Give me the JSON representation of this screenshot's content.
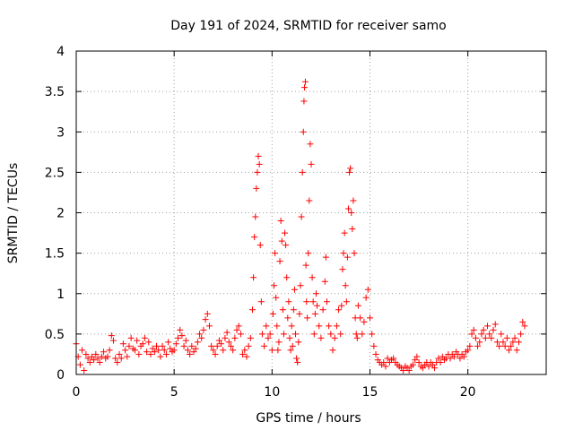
{
  "chart_data": {
    "type": "scatter",
    "title": "Day 191 of 2024, SRMTID for receiver samo",
    "xlabel": "GPS time / hours",
    "ylabel": "SRMTID / TECUs",
    "xlim": [
      0,
      24
    ],
    "ylim": [
      0,
      4
    ],
    "xticks": [
      0,
      5,
      10,
      15,
      20
    ],
    "yticks": [
      0,
      0.5,
      1,
      1.5,
      2,
      2.5,
      3,
      3.5,
      4
    ],
    "xtick_labels": [
      "0",
      "5",
      "10",
      "15",
      "20"
    ],
    "ytick_labels": [
      "0",
      "0.5",
      "1",
      "1.5",
      "2",
      "2.5",
      "3",
      "3.5",
      "4"
    ],
    "grid": true,
    "marker": "+",
    "marker_color": "#ff0000",
    "series": [
      {
        "name": "SRMTID",
        "points": [
          [
            0.0,
            0.38
          ],
          [
            0.1,
            0.22
          ],
          [
            0.2,
            0.12
          ],
          [
            0.3,
            0.3
          ],
          [
            0.4,
            0.05
          ],
          [
            0.5,
            0.25
          ],
          [
            0.6,
            0.2
          ],
          [
            0.7,
            0.15
          ],
          [
            0.8,
            0.22
          ],
          [
            0.9,
            0.18
          ],
          [
            1.0,
            0.25
          ],
          [
            1.1,
            0.2
          ],
          [
            1.2,
            0.15
          ],
          [
            1.3,
            0.22
          ],
          [
            1.4,
            0.28
          ],
          [
            1.5,
            0.2
          ],
          [
            1.6,
            0.22
          ],
          [
            1.7,
            0.3
          ],
          [
            1.8,
            0.48
          ],
          [
            1.9,
            0.42
          ],
          [
            2.0,
            0.2
          ],
          [
            2.1,
            0.15
          ],
          [
            2.2,
            0.25
          ],
          [
            2.3,
            0.2
          ],
          [
            2.4,
            0.38
          ],
          [
            2.5,
            0.3
          ],
          [
            2.6,
            0.22
          ],
          [
            2.7,
            0.35
          ],
          [
            2.8,
            0.45
          ],
          [
            2.9,
            0.32
          ],
          [
            3.0,
            0.3
          ],
          [
            3.1,
            0.42
          ],
          [
            3.2,
            0.25
          ],
          [
            3.3,
            0.35
          ],
          [
            3.4,
            0.38
          ],
          [
            3.5,
            0.45
          ],
          [
            3.6,
            0.28
          ],
          [
            3.7,
            0.4
          ],
          [
            3.8,
            0.25
          ],
          [
            3.9,
            0.32
          ],
          [
            4.0,
            0.28
          ],
          [
            4.1,
            0.35
          ],
          [
            4.2,
            0.3
          ],
          [
            4.3,
            0.22
          ],
          [
            4.4,
            0.35
          ],
          [
            4.5,
            0.3
          ],
          [
            4.6,
            0.25
          ],
          [
            4.7,
            0.4
          ],
          [
            4.8,
            0.32
          ],
          [
            4.9,
            0.28
          ],
          [
            5.0,
            0.3
          ],
          [
            5.1,
            0.38
          ],
          [
            5.2,
            0.45
          ],
          [
            5.3,
            0.55
          ],
          [
            5.4,
            0.48
          ],
          [
            5.5,
            0.35
          ],
          [
            5.6,
            0.42
          ],
          [
            5.7,
            0.3
          ],
          [
            5.8,
            0.25
          ],
          [
            5.9,
            0.35
          ],
          [
            6.0,
            0.28
          ],
          [
            6.1,
            0.32
          ],
          [
            6.2,
            0.4
          ],
          [
            6.3,
            0.5
          ],
          [
            6.4,
            0.45
          ],
          [
            6.5,
            0.55
          ],
          [
            6.6,
            0.68
          ],
          [
            6.7,
            0.75
          ],
          [
            6.8,
            0.6
          ],
          [
            6.9,
            0.35
          ],
          [
            7.0,
            0.3
          ],
          [
            7.1,
            0.25
          ],
          [
            7.2,
            0.35
          ],
          [
            7.3,
            0.42
          ],
          [
            7.4,
            0.38
          ],
          [
            7.5,
            0.3
          ],
          [
            7.6,
            0.45
          ],
          [
            7.7,
            0.52
          ],
          [
            7.8,
            0.4
          ],
          [
            7.9,
            0.35
          ],
          [
            8.0,
            0.3
          ],
          [
            8.1,
            0.45
          ],
          [
            8.2,
            0.55
          ],
          [
            8.3,
            0.6
          ],
          [
            8.4,
            0.5
          ],
          [
            8.5,
            0.25
          ],
          [
            8.6,
            0.3
          ],
          [
            8.7,
            0.22
          ],
          [
            8.8,
            0.35
          ],
          [
            8.9,
            0.45
          ],
          [
            9.0,
            0.8
          ],
          [
            9.05,
            1.2
          ],
          [
            9.1,
            1.7
          ],
          [
            9.15,
            1.95
          ],
          [
            9.2,
            2.3
          ],
          [
            9.25,
            2.5
          ],
          [
            9.3,
            2.7
          ],
          [
            9.35,
            2.6
          ],
          [
            9.4,
            1.6
          ],
          [
            9.45,
            0.9
          ],
          [
            9.5,
            0.5
          ],
          [
            9.6,
            0.35
          ],
          [
            9.7,
            0.6
          ],
          [
            9.8,
            0.45
          ],
          [
            9.9,
            0.5
          ],
          [
            10.0,
            0.3
          ],
          [
            10.05,
            0.75
          ],
          [
            10.1,
            1.1
          ],
          [
            10.15,
            1.5
          ],
          [
            10.2,
            0.95
          ],
          [
            10.25,
            0.6
          ],
          [
            10.3,
            0.3
          ],
          [
            10.35,
            0.4
          ],
          [
            10.4,
            1.4
          ],
          [
            10.45,
            1.9
          ],
          [
            10.5,
            1.65
          ],
          [
            10.55,
            0.8
          ],
          [
            10.6,
            0.5
          ],
          [
            10.65,
            1.75
          ],
          [
            10.7,
            1.6
          ],
          [
            10.75,
            1.2
          ],
          [
            10.8,
            0.7
          ],
          [
            10.85,
            0.9
          ],
          [
            10.9,
            0.45
          ],
          [
            10.95,
            0.3
          ],
          [
            11.0,
            0.6
          ],
          [
            11.05,
            0.35
          ],
          [
            11.1,
            0.8
          ],
          [
            11.15,
            1.05
          ],
          [
            11.2,
            0.5
          ],
          [
            11.25,
            0.2
          ],
          [
            11.3,
            0.15
          ],
          [
            11.35,
            0.4
          ],
          [
            11.4,
            0.75
          ],
          [
            11.45,
            1.1
          ],
          [
            11.5,
            1.95
          ],
          [
            11.55,
            2.5
          ],
          [
            11.6,
            3.0
          ],
          [
            11.63,
            3.38
          ],
          [
            11.66,
            3.55
          ],
          [
            11.7,
            3.62
          ],
          [
            11.73,
            1.35
          ],
          [
            11.76,
            0.9
          ],
          [
            11.8,
            0.7
          ],
          [
            11.85,
            1.5
          ],
          [
            11.9,
            2.15
          ],
          [
            11.95,
            2.85
          ],
          [
            12.0,
            2.6
          ],
          [
            12.05,
            1.2
          ],
          [
            12.1,
            0.9
          ],
          [
            12.15,
            0.5
          ],
          [
            12.2,
            0.75
          ],
          [
            12.25,
            1.0
          ],
          [
            12.3,
            0.85
          ],
          [
            12.4,
            0.6
          ],
          [
            12.5,
            0.45
          ],
          [
            12.6,
            0.8
          ],
          [
            12.7,
            1.15
          ],
          [
            12.75,
            1.45
          ],
          [
            12.8,
            0.9
          ],
          [
            12.9,
            0.6
          ],
          [
            13.0,
            0.5
          ],
          [
            13.1,
            0.3
          ],
          [
            13.2,
            0.45
          ],
          [
            13.3,
            0.6
          ],
          [
            13.4,
            0.8
          ],
          [
            13.5,
            0.5
          ],
          [
            13.55,
            0.85
          ],
          [
            13.6,
            1.3
          ],
          [
            13.65,
            1.5
          ],
          [
            13.7,
            1.75
          ],
          [
            13.75,
            1.1
          ],
          [
            13.8,
            0.9
          ],
          [
            13.85,
            1.45
          ],
          [
            13.9,
            2.05
          ],
          [
            13.95,
            2.5
          ],
          [
            14.0,
            2.55
          ],
          [
            14.05,
            2.0
          ],
          [
            14.1,
            1.8
          ],
          [
            14.15,
            2.15
          ],
          [
            14.2,
            1.5
          ],
          [
            14.25,
            0.7
          ],
          [
            14.3,
            0.5
          ],
          [
            14.35,
            0.45
          ],
          [
            14.4,
            0.85
          ],
          [
            14.5,
            0.7
          ],
          [
            14.6,
            0.5
          ],
          [
            14.7,
            0.65
          ],
          [
            14.8,
            0.95
          ],
          [
            14.9,
            1.05
          ],
          [
            15.0,
            0.7
          ],
          [
            15.1,
            0.5
          ],
          [
            15.2,
            0.35
          ],
          [
            15.3,
            0.25
          ],
          [
            15.4,
            0.18
          ],
          [
            15.5,
            0.15
          ],
          [
            15.6,
            0.12
          ],
          [
            15.7,
            0.15
          ],
          [
            15.8,
            0.1
          ],
          [
            15.9,
            0.2
          ],
          [
            16.0,
            0.15
          ],
          [
            16.1,
            0.18
          ],
          [
            16.2,
            0.2
          ],
          [
            16.3,
            0.15
          ],
          [
            16.4,
            0.12
          ],
          [
            16.5,
            0.1
          ],
          [
            16.6,
            0.08
          ],
          [
            16.7,
            0.05
          ],
          [
            16.8,
            0.1
          ],
          [
            16.9,
            0.08
          ],
          [
            17.0,
            0.05
          ],
          [
            17.1,
            0.1
          ],
          [
            17.2,
            0.12
          ],
          [
            17.3,
            0.18
          ],
          [
            17.4,
            0.22
          ],
          [
            17.5,
            0.15
          ],
          [
            17.6,
            0.1
          ],
          [
            17.7,
            0.08
          ],
          [
            17.8,
            0.12
          ],
          [
            17.9,
            0.15
          ],
          [
            18.0,
            0.1
          ],
          [
            18.1,
            0.15
          ],
          [
            18.2,
            0.12
          ],
          [
            18.3,
            0.08
          ],
          [
            18.4,
            0.15
          ],
          [
            18.5,
            0.2
          ],
          [
            18.6,
            0.15
          ],
          [
            18.7,
            0.22
          ],
          [
            18.8,
            0.18
          ],
          [
            18.9,
            0.2
          ],
          [
            19.0,
            0.25
          ],
          [
            19.1,
            0.2
          ],
          [
            19.2,
            0.25
          ],
          [
            19.3,
            0.22
          ],
          [
            19.4,
            0.28
          ],
          [
            19.5,
            0.25
          ],
          [
            19.6,
            0.2
          ],
          [
            19.7,
            0.25
          ],
          [
            19.8,
            0.22
          ],
          [
            19.9,
            0.28
          ],
          [
            20.0,
            0.3
          ],
          [
            20.1,
            0.35
          ],
          [
            20.2,
            0.5
          ],
          [
            20.3,
            0.55
          ],
          [
            20.4,
            0.45
          ],
          [
            20.5,
            0.35
          ],
          [
            20.6,
            0.4
          ],
          [
            20.7,
            0.5
          ],
          [
            20.8,
            0.55
          ],
          [
            20.9,
            0.45
          ],
          [
            21.0,
            0.6
          ],
          [
            21.1,
            0.5
          ],
          [
            21.2,
            0.45
          ],
          [
            21.3,
            0.55
          ],
          [
            21.4,
            0.62
          ],
          [
            21.5,
            0.4
          ],
          [
            21.6,
            0.35
          ],
          [
            21.7,
            0.5
          ],
          [
            21.8,
            0.4
          ],
          [
            21.9,
            0.35
          ],
          [
            22.0,
            0.45
          ],
          [
            22.1,
            0.3
          ],
          [
            22.2,
            0.35
          ],
          [
            22.3,
            0.4
          ],
          [
            22.4,
            0.45
          ],
          [
            22.5,
            0.3
          ],
          [
            22.6,
            0.4
          ],
          [
            22.7,
            0.5
          ],
          [
            22.8,
            0.65
          ],
          [
            22.9,
            0.6
          ]
        ]
      }
    ]
  }
}
